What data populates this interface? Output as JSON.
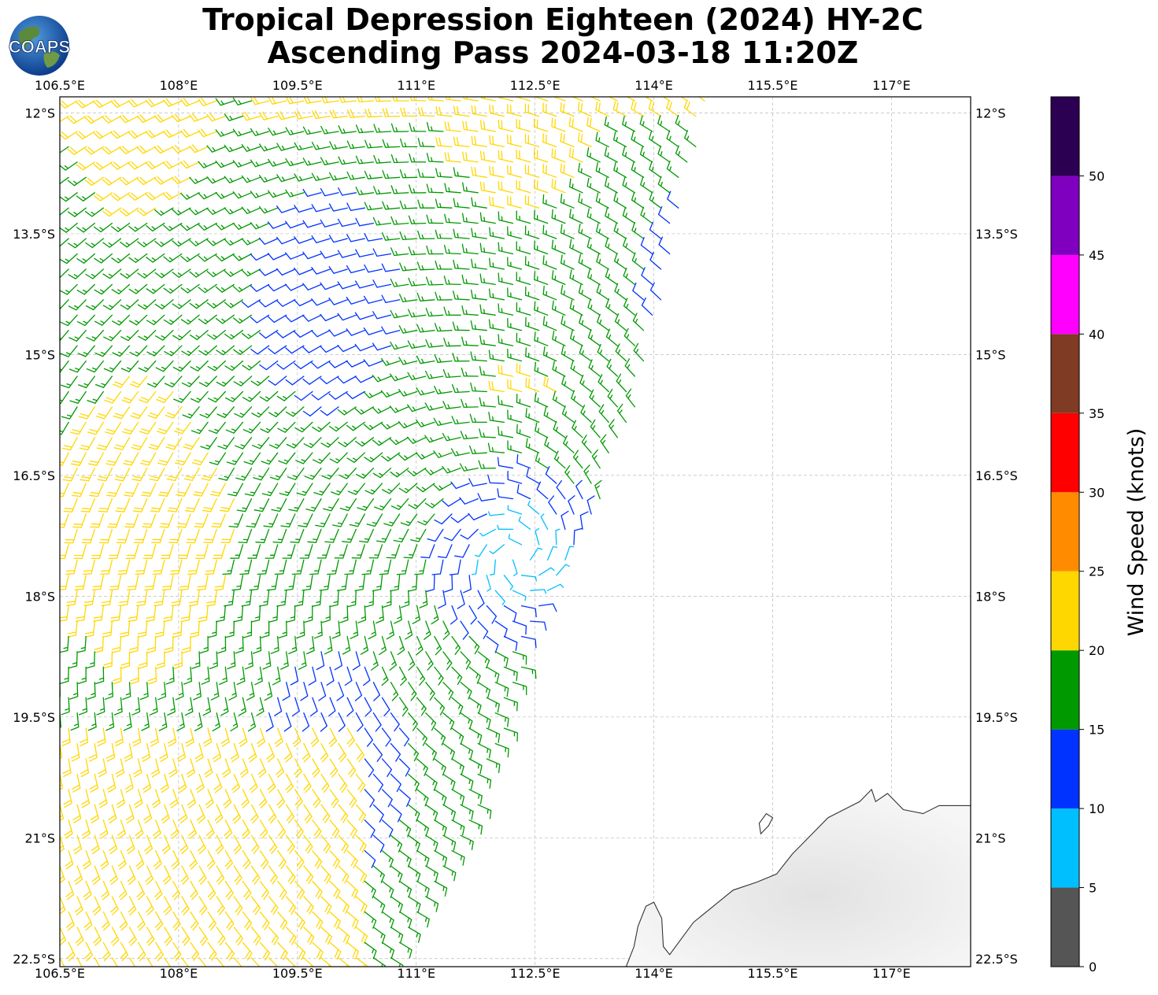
{
  "title": {
    "line1": "Tropical Depression Eighteen (2024) HY-2C",
    "line2": "Ascending Pass 2024-03-18 11:20Z"
  },
  "logo": {
    "text": "COAPS",
    "icon": "globe-logo-icon"
  },
  "map": {
    "lon_range": [
      106.5,
      118.0
    ],
    "lat_range": [
      -22.6,
      -11.8
    ],
    "lon_ticks": [
      {
        "value": 106.5,
        "label": "106.5°E"
      },
      {
        "value": 108,
        "label": "108°E"
      },
      {
        "value": 109.5,
        "label": "109.5°E"
      },
      {
        "value": 111,
        "label": "111°E"
      },
      {
        "value": 112.5,
        "label": "112.5°E"
      },
      {
        "value": 114,
        "label": "114°E"
      },
      {
        "value": 115.5,
        "label": "115.5°E"
      },
      {
        "value": 117,
        "label": "117°E"
      }
    ],
    "lat_ticks": [
      {
        "value": -12,
        "label": "12°S"
      },
      {
        "value": -13.5,
        "label": "13.5°S"
      },
      {
        "value": -15,
        "label": "15°S"
      },
      {
        "value": -16.5,
        "label": "16.5°S"
      },
      {
        "value": -18,
        "label": "18°S"
      },
      {
        "value": -19.5,
        "label": "19.5°S"
      },
      {
        "value": -21,
        "label": "21°S"
      },
      {
        "value": -22.5,
        "label": "22.5°S"
      }
    ],
    "gridlines": true,
    "cyclone_center": {
      "lon": 112.3,
      "lat": -17.5
    },
    "swath_east_edge": [
      {
        "lat": -11.8,
        "lon": 114.7
      },
      {
        "lat": -16.0,
        "lon": 113.7
      },
      {
        "lat": -18.5,
        "lon": 112.5
      },
      {
        "lat": -21.2,
        "lon": 111.6
      },
      {
        "lat": -22.6,
        "lon": 110.8
      }
    ],
    "coastline": [
      [
        113.65,
        -22.6
      ],
      [
        113.75,
        -22.35
      ],
      [
        113.8,
        -22.1
      ],
      [
        113.9,
        -21.85
      ],
      [
        114.0,
        -21.8
      ],
      [
        114.1,
        -22.0
      ],
      [
        114.12,
        -22.35
      ],
      [
        114.2,
        -22.45
      ],
      [
        114.35,
        -22.25
      ],
      [
        114.5,
        -22.05
      ],
      [
        114.75,
        -21.85
      ],
      [
        115.0,
        -21.65
      ],
      [
        115.3,
        -21.55
      ],
      [
        115.55,
        -21.45
      ],
      [
        115.75,
        -21.2
      ],
      [
        115.95,
        -21.0
      ],
      [
        116.2,
        -20.75
      ],
      [
        116.4,
        -20.65
      ],
      [
        116.6,
        -20.55
      ],
      [
        116.75,
        -20.4
      ],
      [
        116.8,
        -20.55
      ],
      [
        116.95,
        -20.45
      ],
      [
        117.15,
        -20.65
      ],
      [
        117.4,
        -20.7
      ],
      [
        117.6,
        -20.6
      ],
      [
        117.8,
        -20.6
      ],
      [
        118.0,
        -20.6
      ]
    ],
    "island": [
      [
        115.35,
        -20.95
      ],
      [
        115.45,
        -20.85
      ],
      [
        115.5,
        -20.75
      ],
      [
        115.42,
        -20.7
      ],
      [
        115.33,
        -20.82
      ]
    ]
  },
  "colorbar": {
    "label": "Wind Speed (knots)",
    "bins": [
      {
        "min": 0,
        "max": 5,
        "color": "#555555"
      },
      {
        "min": 5,
        "max": 10,
        "color": "#00bfff"
      },
      {
        "min": 10,
        "max": 15,
        "color": "#0033ff"
      },
      {
        "min": 15,
        "max": 20,
        "color": "#009900"
      },
      {
        "min": 20,
        "max": 25,
        "color": "#ffd700"
      },
      {
        "min": 25,
        "max": 30,
        "color": "#ff8c00"
      },
      {
        "min": 30,
        "max": 35,
        "color": "#ff0000"
      },
      {
        "min": 35,
        "max": 40,
        "color": "#7f3b24"
      },
      {
        "min": 40,
        "max": 45,
        "color": "#ff00ff"
      },
      {
        "min": 45,
        "max": 50,
        "color": "#7f00bf"
      },
      {
        "min": 50,
        "max": 55,
        "color": "#2b0052"
      }
    ],
    "ticks": [
      "0",
      "5",
      "10",
      "15",
      "20",
      "25",
      "30",
      "35",
      "40",
      "45",
      "50"
    ]
  }
}
